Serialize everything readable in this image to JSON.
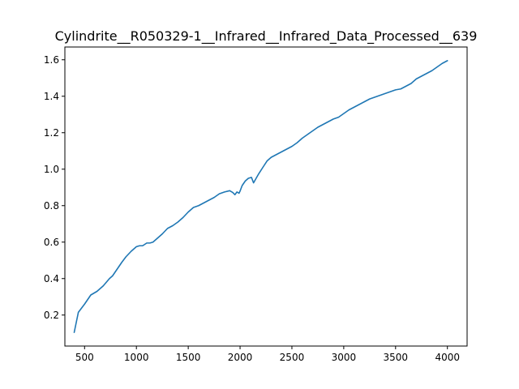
{
  "chart_data": {
    "type": "line",
    "title": "Cylindrite__R050329-1__Infrared__Infrared_Data_Processed__639",
    "xlabel": "",
    "ylabel": "",
    "xlim": [
      310,
      4190
    ],
    "ylim": [
      0.03,
      1.67
    ],
    "xticks": [
      500,
      1000,
      1500,
      2000,
      2500,
      3000,
      3500,
      4000
    ],
    "yticks": [
      0.2,
      0.4,
      0.6,
      0.8,
      1.0,
      1.2,
      1.4,
      1.6
    ],
    "xtick_labels": [
      "500",
      "1000",
      "1500",
      "2000",
      "2500",
      "3000",
      "3500",
      "4000"
    ],
    "ytick_labels": [
      "0.2",
      "0.4",
      "0.6",
      "0.8",
      "1.0",
      "1.2",
      "1.4",
      "1.6"
    ],
    "grid": false,
    "legend": "none",
    "series": [
      {
        "color": "#1f77b4",
        "x": [
          400,
          420,
          440,
          460,
          480,
          500,
          530,
          560,
          590,
          620,
          650,
          680,
          710,
          740,
          770,
          800,
          830,
          860,
          900,
          950,
          1000,
          1030,
          1060,
          1100,
          1130,
          1160,
          1200,
          1250,
          1300,
          1350,
          1400,
          1450,
          1500,
          1550,
          1600,
          1650,
          1700,
          1750,
          1800,
          1850,
          1900,
          1930,
          1950,
          1970,
          1990,
          2000,
          2020,
          2050,
          2080,
          2110,
          2130,
          2150,
          2180,
          2220,
          2260,
          2300,
          2350,
          2400,
          2450,
          2500,
          2550,
          2600,
          2650,
          2700,
          2750,
          2800,
          2850,
          2900,
          2950,
          3000,
          3050,
          3100,
          3150,
          3200,
          3250,
          3300,
          3350,
          3400,
          3450,
          3500,
          3550,
          3600,
          3650,
          3700,
          3750,
          3800,
          3850,
          3900,
          3950,
          4000
        ],
        "y": [
          0.105,
          0.16,
          0.215,
          0.23,
          0.245,
          0.26,
          0.285,
          0.31,
          0.32,
          0.33,
          0.345,
          0.36,
          0.38,
          0.4,
          0.415,
          0.44,
          0.465,
          0.49,
          0.52,
          0.55,
          0.575,
          0.58,
          0.58,
          0.595,
          0.595,
          0.6,
          0.62,
          0.645,
          0.675,
          0.69,
          0.71,
          0.735,
          0.765,
          0.79,
          0.8,
          0.815,
          0.83,
          0.845,
          0.865,
          0.875,
          0.882,
          0.872,
          0.86,
          0.875,
          0.868,
          0.88,
          0.91,
          0.935,
          0.95,
          0.955,
          0.925,
          0.945,
          0.975,
          1.01,
          1.045,
          1.065,
          1.08,
          1.095,
          1.11,
          1.125,
          1.145,
          1.17,
          1.19,
          1.21,
          1.23,
          1.245,
          1.26,
          1.275,
          1.285,
          1.305,
          1.325,
          1.34,
          1.355,
          1.37,
          1.385,
          1.395,
          1.405,
          1.415,
          1.425,
          1.435,
          1.44,
          1.455,
          1.47,
          1.495,
          1.51,
          1.525,
          1.54,
          1.56,
          1.58,
          1.595
        ]
      }
    ]
  }
}
